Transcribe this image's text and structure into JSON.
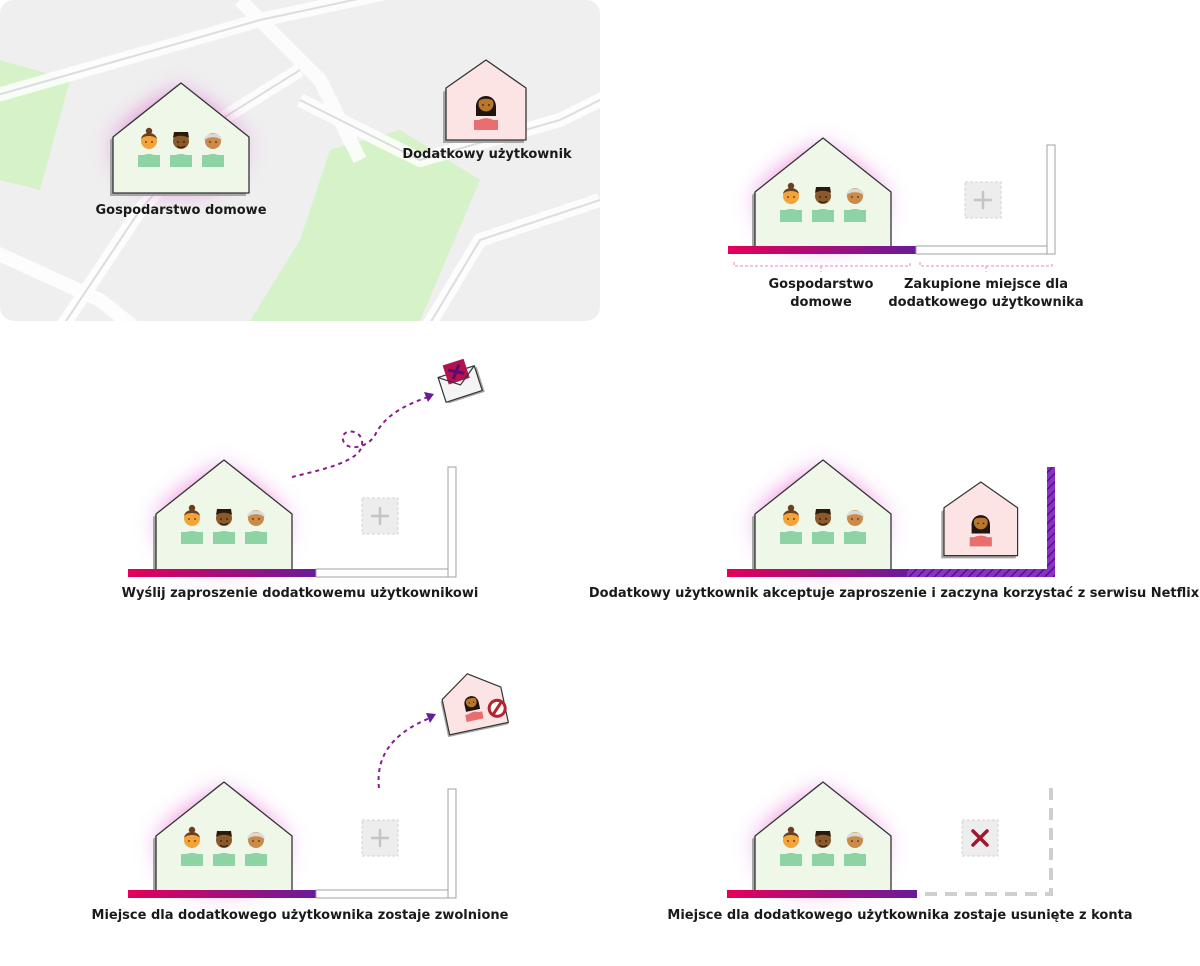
{
  "panels": {
    "intro": {
      "household_label": "Gospodarstwo domowe",
      "extra_user_label": "Dodatkowy użytkownik"
    },
    "slot": {
      "household_label_line1": "Gospodarstwo",
      "household_label_line2": "domowe",
      "slot_label_line1": "Zakupione miejsce dla",
      "slot_label_line2": "dodatkowego użytkownika"
    },
    "invite": {
      "caption": "Wyślij zaproszenie dodatkowemu użytkownikowi"
    },
    "accept": {
      "caption": "Dodatkowy użytkownik akceptuje zaproszenie i zaczyna korzystać z serwisu Netflix"
    },
    "release": {
      "caption": "Miejsce dla dodatkowego użytkownika zostaje zwolnione"
    },
    "remove": {
      "caption": "Miejsce dla dodatkowego użytkownika zostaje usunięte z konta"
    }
  },
  "colors": {
    "house_fill": "#eef7e8",
    "extra_house_fill": "#fde4e4",
    "gradient_start": "#e5005a",
    "gradient_end": "#6a1b9a",
    "map_green": "#d6f2c8",
    "map_bg": "#efefef"
  },
  "icons": [
    "house-icon",
    "person-icon",
    "plus-icon",
    "envelope-icon",
    "blocked-icon",
    "remove-x-icon"
  ]
}
